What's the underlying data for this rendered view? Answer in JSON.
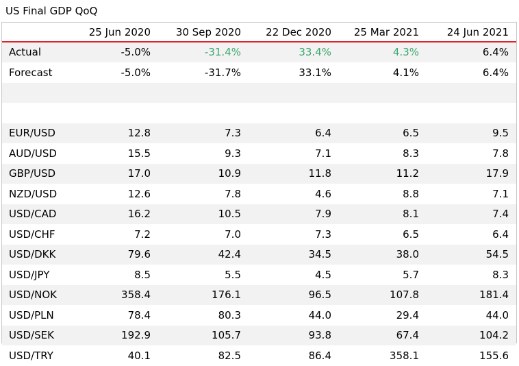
{
  "title": "US Final GDP QoQ",
  "columns": [
    "25 Jun 2020",
    "30 Sep 2020",
    "22 Dec 2020",
    "25 Mar 2021",
    "24 Jun 2021"
  ],
  "colors": {
    "header_rule": "#e1242a",
    "positive": "#3aa76d",
    "stripe": "#f2f2f2"
  },
  "rows": [
    {
      "label": "Actual",
      "values": [
        "-5.0%",
        "-31.4%",
        "33.4%",
        "4.3%",
        "6.4%"
      ]
    },
    {
      "label": "Forecast",
      "values": [
        "-5.0%",
        "-31.7%",
        "33.1%",
        "4.1%",
        "6.4%"
      ]
    },
    {
      "label": "",
      "values": [
        "",
        "",
        "",
        "",
        ""
      ]
    },
    {
      "label": "",
      "values": [
        "",
        "",
        "",
        "",
        ""
      ]
    },
    {
      "label": "EUR/USD",
      "values": [
        "12.8",
        "7.3",
        "6.4",
        "6.5",
        "9.5"
      ]
    },
    {
      "label": "AUD/USD",
      "values": [
        "15.5",
        "9.3",
        "7.1",
        "8.3",
        "7.8"
      ]
    },
    {
      "label": "GBP/USD",
      "values": [
        "17.0",
        "10.9",
        "11.8",
        "11.2",
        "17.9"
      ]
    },
    {
      "label": "NZD/USD",
      "values": [
        "12.6",
        "7.8",
        "4.6",
        "8.8",
        "7.1"
      ]
    },
    {
      "label": "USD/CAD",
      "values": [
        "16.2",
        "10.5",
        "7.9",
        "8.1",
        "7.4"
      ]
    },
    {
      "label": "USD/CHF",
      "values": [
        "7.2",
        "7.0",
        "7.3",
        "6.5",
        "6.4"
      ]
    },
    {
      "label": "USD/DKK",
      "values": [
        "79.6",
        "42.4",
        "34.5",
        "38.0",
        "54.5"
      ]
    },
    {
      "label": "USD/JPY",
      "values": [
        "8.5",
        "5.5",
        "4.5",
        "5.7",
        "8.3"
      ]
    },
    {
      "label": "USD/NOK",
      "values": [
        "358.4",
        "176.1",
        "96.5",
        "107.8",
        "181.4"
      ]
    },
    {
      "label": "USD/PLN",
      "values": [
        "78.4",
        "80.3",
        "44.0",
        "29.4",
        "44.0"
      ]
    },
    {
      "label": "USD/SEK",
      "values": [
        "192.9",
        "105.7",
        "93.8",
        "67.4",
        "104.2"
      ]
    },
    {
      "label": "USD/TRY",
      "values": [
        "40.1",
        "82.5",
        "86.4",
        "358.1",
        "155.6"
      ]
    }
  ]
}
